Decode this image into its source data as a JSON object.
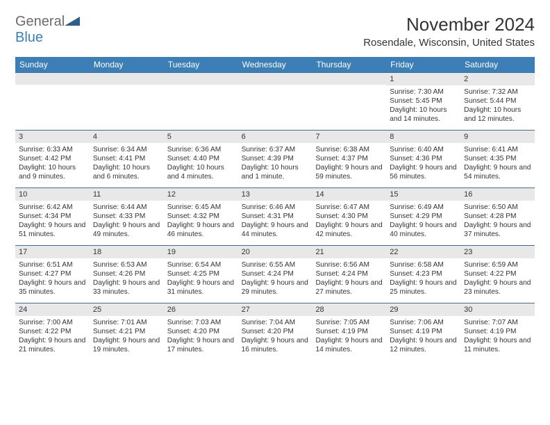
{
  "logo": {
    "general": "General",
    "blue": "Blue"
  },
  "header": {
    "month_title": "November 2024",
    "location": "Rosendale, Wisconsin, United States"
  },
  "colors": {
    "brand_blue": "#3b7fb6",
    "header_bar": "#3b7fb6",
    "border": "#3b6f9e",
    "daynum_bg": "#e8e8e8",
    "text": "#333333",
    "logo_gray": "#6b6b6b"
  },
  "weekdays": [
    "Sunday",
    "Monday",
    "Tuesday",
    "Wednesday",
    "Thursday",
    "Friday",
    "Saturday"
  ],
  "weeks": [
    [
      {
        "n": "",
        "sr": "",
        "ss": "",
        "dl": ""
      },
      {
        "n": "",
        "sr": "",
        "ss": "",
        "dl": ""
      },
      {
        "n": "",
        "sr": "",
        "ss": "",
        "dl": ""
      },
      {
        "n": "",
        "sr": "",
        "ss": "",
        "dl": ""
      },
      {
        "n": "",
        "sr": "",
        "ss": "",
        "dl": ""
      },
      {
        "n": "1",
        "sr": "Sunrise: 7:30 AM",
        "ss": "Sunset: 5:45 PM",
        "dl": "Daylight: 10 hours and 14 minutes."
      },
      {
        "n": "2",
        "sr": "Sunrise: 7:32 AM",
        "ss": "Sunset: 5:44 PM",
        "dl": "Daylight: 10 hours and 12 minutes."
      }
    ],
    [
      {
        "n": "3",
        "sr": "Sunrise: 6:33 AM",
        "ss": "Sunset: 4:42 PM",
        "dl": "Daylight: 10 hours and 9 minutes."
      },
      {
        "n": "4",
        "sr": "Sunrise: 6:34 AM",
        "ss": "Sunset: 4:41 PM",
        "dl": "Daylight: 10 hours and 6 minutes."
      },
      {
        "n": "5",
        "sr": "Sunrise: 6:36 AM",
        "ss": "Sunset: 4:40 PM",
        "dl": "Daylight: 10 hours and 4 minutes."
      },
      {
        "n": "6",
        "sr": "Sunrise: 6:37 AM",
        "ss": "Sunset: 4:39 PM",
        "dl": "Daylight: 10 hours and 1 minute."
      },
      {
        "n": "7",
        "sr": "Sunrise: 6:38 AM",
        "ss": "Sunset: 4:37 PM",
        "dl": "Daylight: 9 hours and 59 minutes."
      },
      {
        "n": "8",
        "sr": "Sunrise: 6:40 AM",
        "ss": "Sunset: 4:36 PM",
        "dl": "Daylight: 9 hours and 56 minutes."
      },
      {
        "n": "9",
        "sr": "Sunrise: 6:41 AM",
        "ss": "Sunset: 4:35 PM",
        "dl": "Daylight: 9 hours and 54 minutes."
      }
    ],
    [
      {
        "n": "10",
        "sr": "Sunrise: 6:42 AM",
        "ss": "Sunset: 4:34 PM",
        "dl": "Daylight: 9 hours and 51 minutes."
      },
      {
        "n": "11",
        "sr": "Sunrise: 6:44 AM",
        "ss": "Sunset: 4:33 PM",
        "dl": "Daylight: 9 hours and 49 minutes."
      },
      {
        "n": "12",
        "sr": "Sunrise: 6:45 AM",
        "ss": "Sunset: 4:32 PM",
        "dl": "Daylight: 9 hours and 46 minutes."
      },
      {
        "n": "13",
        "sr": "Sunrise: 6:46 AM",
        "ss": "Sunset: 4:31 PM",
        "dl": "Daylight: 9 hours and 44 minutes."
      },
      {
        "n": "14",
        "sr": "Sunrise: 6:47 AM",
        "ss": "Sunset: 4:30 PM",
        "dl": "Daylight: 9 hours and 42 minutes."
      },
      {
        "n": "15",
        "sr": "Sunrise: 6:49 AM",
        "ss": "Sunset: 4:29 PM",
        "dl": "Daylight: 9 hours and 40 minutes."
      },
      {
        "n": "16",
        "sr": "Sunrise: 6:50 AM",
        "ss": "Sunset: 4:28 PM",
        "dl": "Daylight: 9 hours and 37 minutes."
      }
    ],
    [
      {
        "n": "17",
        "sr": "Sunrise: 6:51 AM",
        "ss": "Sunset: 4:27 PM",
        "dl": "Daylight: 9 hours and 35 minutes."
      },
      {
        "n": "18",
        "sr": "Sunrise: 6:53 AM",
        "ss": "Sunset: 4:26 PM",
        "dl": "Daylight: 9 hours and 33 minutes."
      },
      {
        "n": "19",
        "sr": "Sunrise: 6:54 AM",
        "ss": "Sunset: 4:25 PM",
        "dl": "Daylight: 9 hours and 31 minutes."
      },
      {
        "n": "20",
        "sr": "Sunrise: 6:55 AM",
        "ss": "Sunset: 4:24 PM",
        "dl": "Daylight: 9 hours and 29 minutes."
      },
      {
        "n": "21",
        "sr": "Sunrise: 6:56 AM",
        "ss": "Sunset: 4:24 PM",
        "dl": "Daylight: 9 hours and 27 minutes."
      },
      {
        "n": "22",
        "sr": "Sunrise: 6:58 AM",
        "ss": "Sunset: 4:23 PM",
        "dl": "Daylight: 9 hours and 25 minutes."
      },
      {
        "n": "23",
        "sr": "Sunrise: 6:59 AM",
        "ss": "Sunset: 4:22 PM",
        "dl": "Daylight: 9 hours and 23 minutes."
      }
    ],
    [
      {
        "n": "24",
        "sr": "Sunrise: 7:00 AM",
        "ss": "Sunset: 4:22 PM",
        "dl": "Daylight: 9 hours and 21 minutes."
      },
      {
        "n": "25",
        "sr": "Sunrise: 7:01 AM",
        "ss": "Sunset: 4:21 PM",
        "dl": "Daylight: 9 hours and 19 minutes."
      },
      {
        "n": "26",
        "sr": "Sunrise: 7:03 AM",
        "ss": "Sunset: 4:20 PM",
        "dl": "Daylight: 9 hours and 17 minutes."
      },
      {
        "n": "27",
        "sr": "Sunrise: 7:04 AM",
        "ss": "Sunset: 4:20 PM",
        "dl": "Daylight: 9 hours and 16 minutes."
      },
      {
        "n": "28",
        "sr": "Sunrise: 7:05 AM",
        "ss": "Sunset: 4:19 PM",
        "dl": "Daylight: 9 hours and 14 minutes."
      },
      {
        "n": "29",
        "sr": "Sunrise: 7:06 AM",
        "ss": "Sunset: 4:19 PM",
        "dl": "Daylight: 9 hours and 12 minutes."
      },
      {
        "n": "30",
        "sr": "Sunrise: 7:07 AM",
        "ss": "Sunset: 4:19 PM",
        "dl": "Daylight: 9 hours and 11 minutes."
      }
    ]
  ]
}
